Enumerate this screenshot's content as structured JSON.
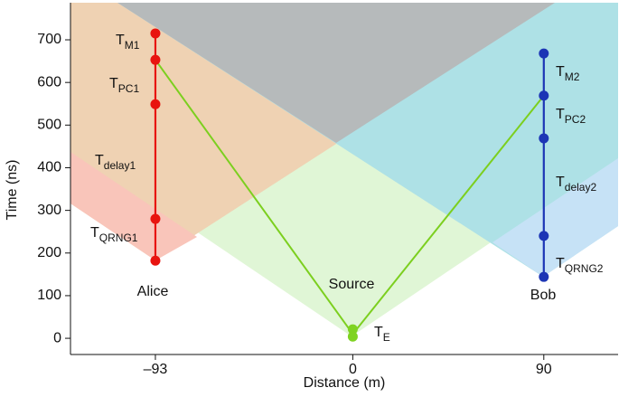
{
  "chart_data": {
    "type": "line",
    "xlabel": "Distance (m)",
    "ylabel": "Time (ns)",
    "xlim": [
      -133,
      125
    ],
    "ylim": [
      -38,
      787
    ],
    "xticks": [
      {
        "value": -93,
        "label": "–93"
      },
      0,
      90
    ],
    "yticks": [
      0,
      100,
      200,
      300,
      400,
      500,
      600,
      700
    ],
    "series": [
      {
        "name": "Alice",
        "color": "#e8140f",
        "x": [
          -93,
          -93,
          -93,
          -93,
          -93
        ],
        "values": [
          715,
          653,
          549,
          280,
          182
        ]
      },
      {
        "name": "Bob",
        "color": "#1c35b5",
        "x": [
          90,
          90,
          90,
          90,
          90
        ],
        "values": [
          668,
          569,
          469,
          240,
          144
        ]
      },
      {
        "name": "Source",
        "color": "#7ed321",
        "x": [
          0,
          0
        ],
        "values": [
          21,
          4
        ]
      },
      {
        "color": "#7ccf1f",
        "x": [
          -93,
          0,
          90
        ],
        "values": [
          653,
          10,
          569
        ]
      }
    ],
    "annotations": [
      {
        "text": "T",
        "sub": "M1"
      },
      {
        "text": "T",
        "sub": "PC1"
      },
      {
        "text": "T",
        "sub": "delay1"
      },
      {
        "text": "T",
        "sub": "QRNG1"
      },
      {
        "text": "T",
        "sub": "M2"
      },
      {
        "text": "T",
        "sub": "PC2"
      },
      {
        "text": "T",
        "sub": "delay2"
      },
      {
        "text": "T",
        "sub": "QRNG2"
      },
      {
        "text": "T",
        "sub": "E"
      }
    ]
  }
}
